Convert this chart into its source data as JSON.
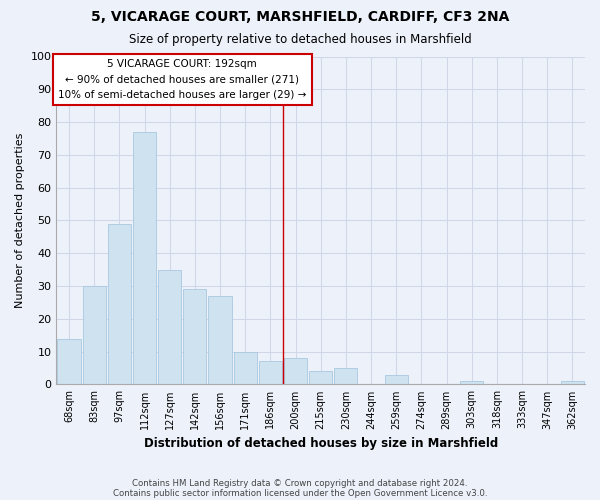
{
  "title": "5, VICARAGE COURT, MARSHFIELD, CARDIFF, CF3 2NA",
  "subtitle": "Size of property relative to detached houses in Marshfield",
  "xlabel": "Distribution of detached houses by size in Marshfield",
  "ylabel": "Number of detached properties",
  "footer_line1": "Contains HM Land Registry data © Crown copyright and database right 2024.",
  "footer_line2": "Contains public sector information licensed under the Open Government Licence v3.0.",
  "bin_labels": [
    "68sqm",
    "83sqm",
    "97sqm",
    "112sqm",
    "127sqm",
    "142sqm",
    "156sqm",
    "171sqm",
    "186sqm",
    "200sqm",
    "215sqm",
    "230sqm",
    "244sqm",
    "259sqm",
    "274sqm",
    "289sqm",
    "303sqm",
    "318sqm",
    "333sqm",
    "347sqm",
    "362sqm"
  ],
  "bar_heights": [
    14,
    30,
    49,
    77,
    35,
    29,
    27,
    10,
    7,
    8,
    4,
    5,
    0,
    3,
    0,
    0,
    1,
    0,
    0,
    0,
    1
  ],
  "bar_color": "#cfe2f0",
  "bar_edgecolor": "#a8c8e0",
  "vline_x_label": "186sqm",
  "vline_color": "#cc0000",
  "annotation_box_title": "5 VICARAGE COURT: 192sqm",
  "annotation_line1": "← 90% of detached houses are smaller (271)",
  "annotation_line2": "10% of semi-detached houses are larger (29) →",
  "ylim": [
    0,
    100
  ],
  "yticks": [
    0,
    10,
    20,
    30,
    40,
    50,
    60,
    70,
    80,
    90,
    100
  ],
  "grid_color": "#d0d8e8",
  "background_color": "#edf2fa",
  "title_fontsize": 10,
  "subtitle_fontsize": 8.5
}
